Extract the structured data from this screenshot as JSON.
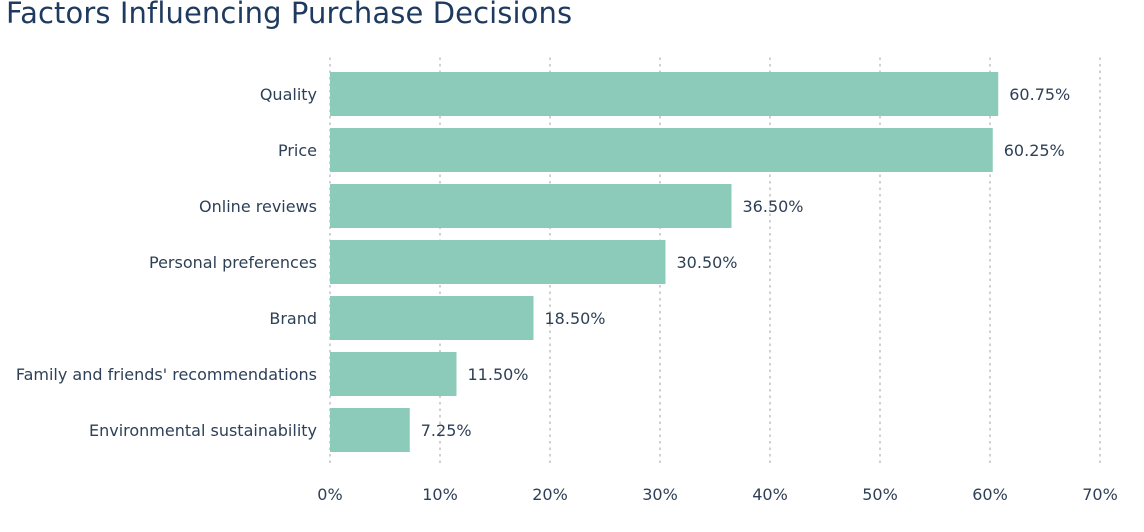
{
  "chart_data": {
    "type": "bar",
    "orientation": "horizontal",
    "title": "Factors Influencing Purchase Decisions",
    "categories": [
      "Quality",
      "Price",
      "Online reviews",
      "Personal preferences",
      "Brand",
      "Family and friends' recommendations",
      "Environmental sustainability"
    ],
    "values": [
      60.75,
      60.25,
      36.5,
      30.5,
      18.5,
      11.5,
      7.25
    ],
    "value_labels": [
      "60.75%",
      "60.25%",
      "36.50%",
      "30.50%",
      "18.50%",
      "11.50%",
      "7.25%"
    ],
    "xticks": [
      0,
      10,
      20,
      30,
      40,
      50,
      60,
      70
    ],
    "xtick_labels": [
      "0%",
      "10%",
      "20%",
      "30%",
      "40%",
      "50%",
      "60%",
      "70%"
    ],
    "xlim": [
      0,
      70
    ],
    "xlabel": "",
    "ylabel": "",
    "grid": "vertical dotted",
    "bar_color": "#8ccbb9",
    "grid_color": "#b0b0b0",
    "text_color": "#2e4057",
    "title_color": "#1f3a5f"
  }
}
